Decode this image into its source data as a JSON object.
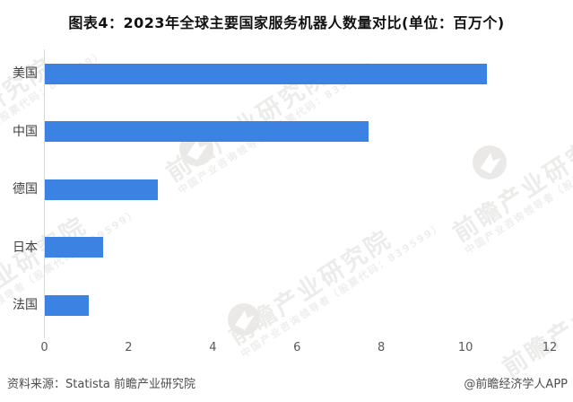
{
  "title": "图表4：2023年全球主要国家服务机器人数量对比(单位：百万个)",
  "chart_data": {
    "type": "bar",
    "orientation": "horizontal",
    "title": "图表4：2023年全球主要国家服务机器人数量对比(单位：百万个)",
    "unit": "百万个",
    "categories": [
      "美国",
      "中国",
      "德国",
      "日本",
      "法国"
    ],
    "values": [
      10.5,
      7.7,
      2.7,
      1.4,
      1.05
    ],
    "xlim": [
      0,
      12
    ],
    "xticks": [
      0,
      2,
      4,
      6,
      8,
      10,
      12
    ],
    "xlabel": "",
    "ylabel": "",
    "grid": false,
    "legend": "none",
    "bar_color": "#3c82e2",
    "axis_color": "#d9d9d9"
  },
  "watermark": {
    "brand_text": "前瞻产业研究院",
    "slogan_text": "中国产业咨询领导者（股票代码：839599）",
    "logo_name": "qianzhan-bird-logo"
  },
  "footer": {
    "source": "资料来源：Statista 前瞻产业研究院",
    "copyright": "@前瞻经济学人APP"
  }
}
